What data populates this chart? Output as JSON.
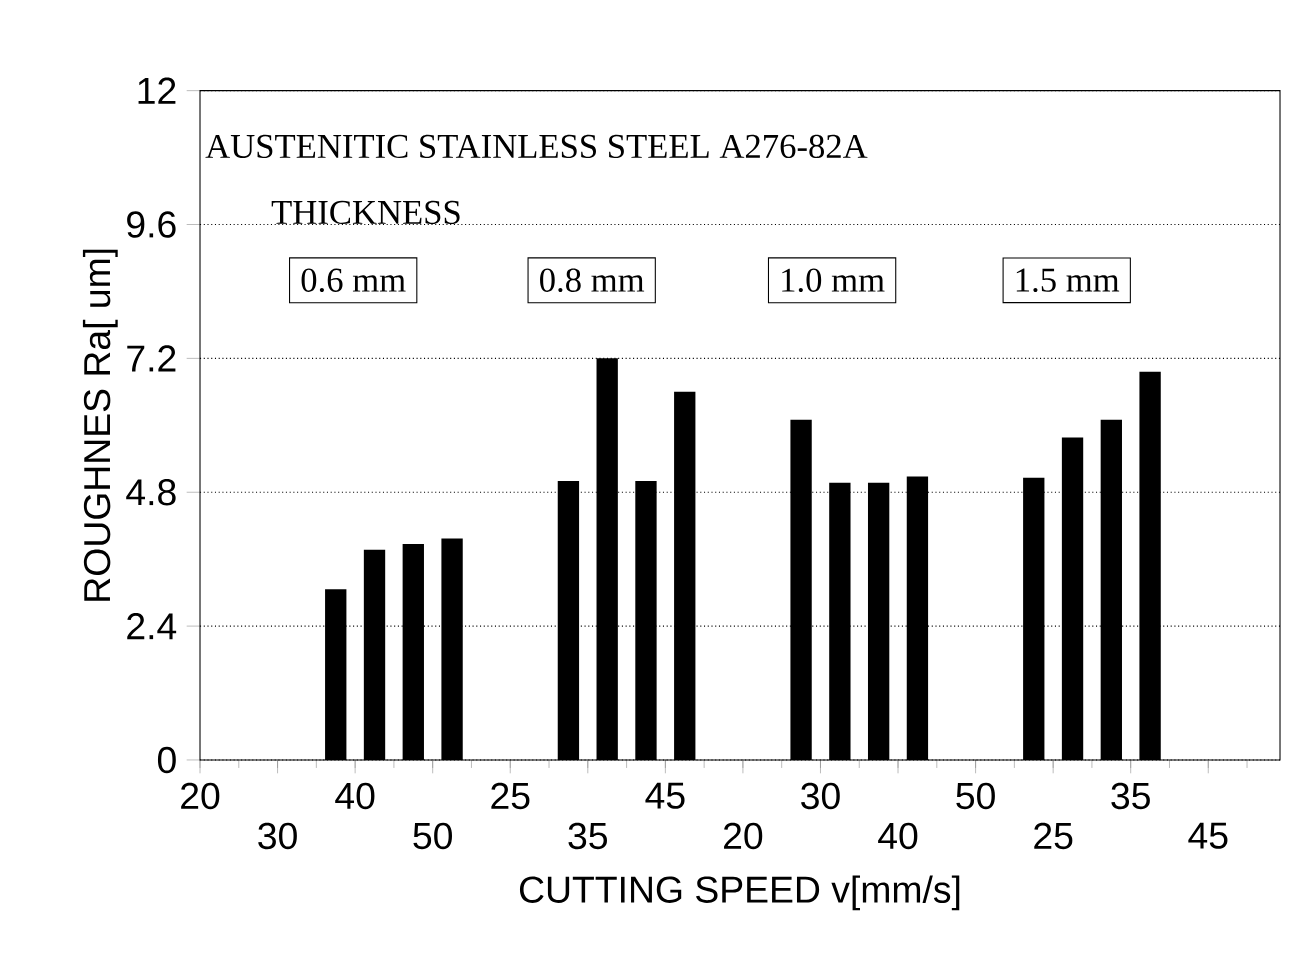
{
  "chart_data": {
    "type": "bar",
    "xlabel": "CUTTING SPEED v[mm/s]",
    "ylabel": "ROUGHNES Ra[ um]",
    "annotations": [
      "AUSTENITIC STAINLESS STEEL  A276-82A",
      "THICKNESS",
      "0.6 mm",
      "0.8 mm",
      "1.0 mm",
      "1.5 mm"
    ],
    "categories": [
      "20",
      null,
      null,
      null,
      "30",
      null,
      null,
      null,
      "40",
      null,
      null,
      null,
      "50",
      null,
      null,
      null,
      "25",
      null,
      null,
      null,
      "35",
      null,
      null,
      null,
      "45",
      null,
      null,
      null,
      "20",
      null,
      null,
      null,
      "30",
      null,
      null,
      null,
      "40",
      null,
      null,
      null,
      "50",
      null,
      null,
      null,
      "25",
      null,
      null,
      null,
      "35",
      null,
      null,
      null,
      "45",
      null,
      null,
      null
    ],
    "values": [
      null,
      null,
      null,
      null,
      null,
      null,
      null,
      3.06,
      null,
      3.77,
      null,
      3.87,
      null,
      3.97,
      null,
      null,
      null,
      null,
      null,
      5.0,
      null,
      7.2,
      null,
      5.0,
      null,
      6.6,
      null,
      null,
      null,
      null,
      null,
      6.1,
      null,
      4.97,
      null,
      4.97,
      null,
      5.08,
      null,
      null,
      null,
      null,
      null,
      5.06,
      null,
      5.78,
      null,
      6.1,
      null,
      6.96,
      null,
      null,
      null,
      null,
      null,
      null
    ],
    "color": "#000000",
    "ylim": [
      0,
      12
    ],
    "yticks": [
      0,
      2.4,
      4.8,
      7.2,
      9.6,
      12
    ],
    "grid": "y"
  }
}
